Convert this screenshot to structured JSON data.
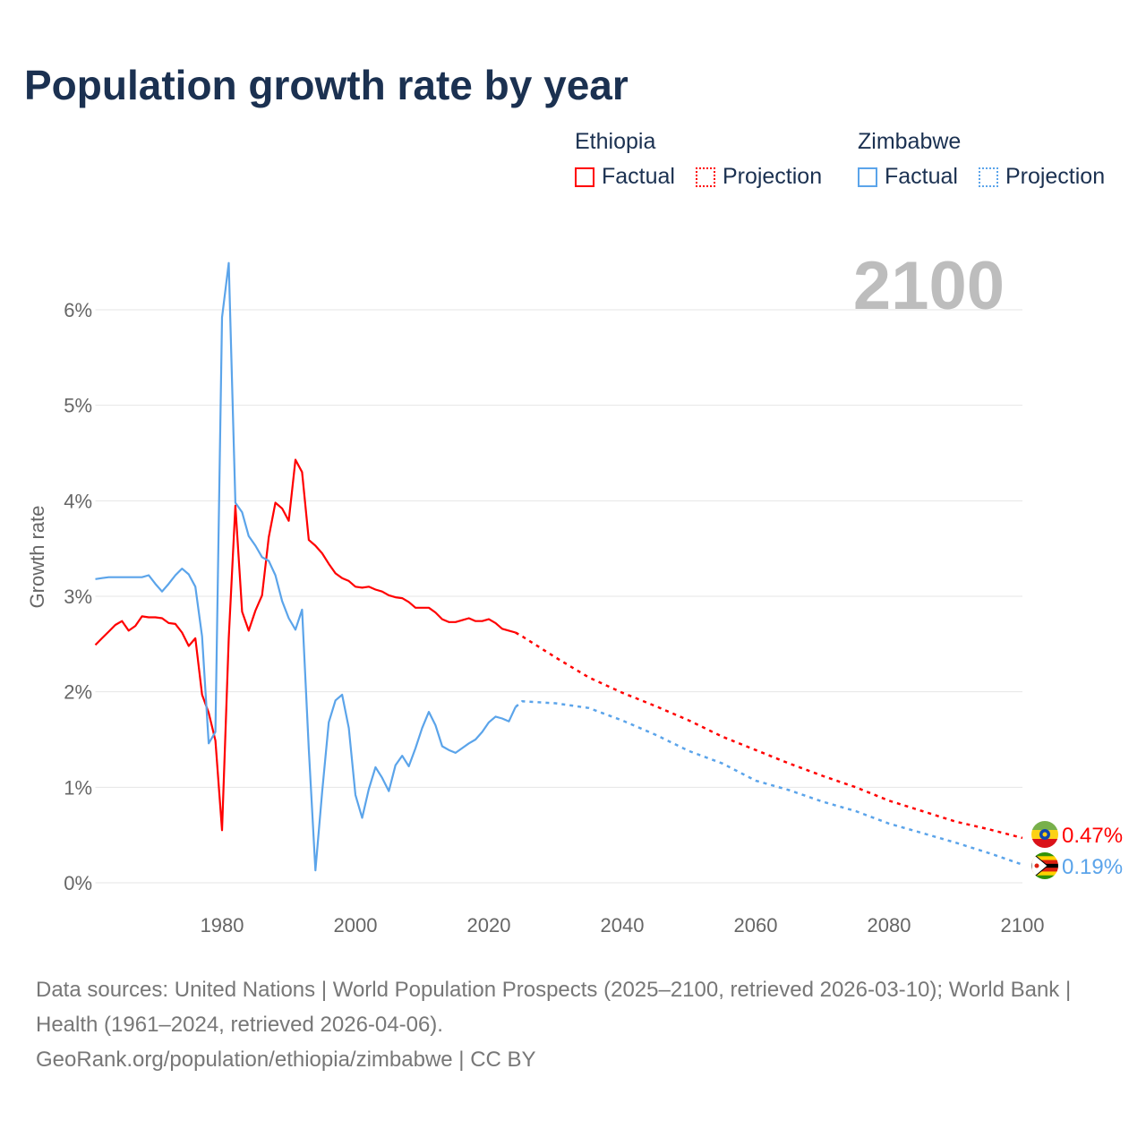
{
  "title": "Population growth rate by year",
  "legend": {
    "groups": [
      {
        "country": "Ethiopia",
        "factual": "Factual",
        "projection": "Projection",
        "color": "#ff0000"
      },
      {
        "country": "Zimbabwe",
        "factual": "Factual",
        "projection": "Projection",
        "color": "#5ba4ea"
      }
    ]
  },
  "year_watermark": "2100",
  "footer": {
    "sources": "Data sources: United Nations | World Population Prospects (2025–2100, retrieved 2026-03-10); World Bank | Health (1961–2024, retrieved 2026-04-06).",
    "credit": "GeoRank.org/population/ethiopia/zimbabwe | CC BY"
  },
  "chart_data": {
    "type": "line",
    "title": "Population growth rate by year",
    "xlabel": "",
    "ylabel": "Growth rate",
    "xlim": [
      1961,
      2100
    ],
    "ylim": [
      0,
      6.5
    ],
    "x_ticks": [
      1980,
      2000,
      2020,
      2040,
      2060,
      2080,
      2100
    ],
    "y_ticks": [
      0,
      1,
      2,
      3,
      4,
      5,
      6
    ],
    "y_tick_labels": [
      "0%",
      "1%",
      "2%",
      "3%",
      "4%",
      "5%",
      "6%"
    ],
    "grid": true,
    "legend_position": "top-right",
    "series": [
      {
        "name": "Ethiopia",
        "color": "#ff0000",
        "end_label": "0.47%",
        "factual": {
          "x": [
            1961,
            1962,
            1963,
            1964,
            1965,
            1966,
            1967,
            1968,
            1969,
            1970,
            1971,
            1972,
            1973,
            1974,
            1975,
            1976,
            1977,
            1978,
            1979,
            1980,
            1981,
            1982,
            1983,
            1984,
            1985,
            1986,
            1987,
            1988,
            1989,
            1990,
            1991,
            1992,
            1993,
            1994,
            1995,
            1996,
            1997,
            1998,
            1999,
            2000,
            2001,
            2002,
            2003,
            2004,
            2005,
            2006,
            2007,
            2008,
            2009,
            2010,
            2011,
            2012,
            2013,
            2014,
            2015,
            2016,
            2017,
            2018,
            2019,
            2020,
            2021,
            2022,
            2023,
            2024
          ],
          "y": [
            2.49,
            2.56,
            2.63,
            2.7,
            2.74,
            2.64,
            2.69,
            2.79,
            2.78,
            2.78,
            2.77,
            2.72,
            2.71,
            2.62,
            2.48,
            2.56,
            1.97,
            1.78,
            1.49,
            0.55,
            2.56,
            3.95,
            2.84,
            2.64,
            2.85,
            3.01,
            3.62,
            3.98,
            3.92,
            3.79,
            4.43,
            4.3,
            3.59,
            3.53,
            3.45,
            3.34,
            3.24,
            3.19,
            3.16,
            3.1,
            3.09,
            3.1,
            3.07,
            3.05,
            3.01,
            2.99,
            2.98,
            2.94,
            2.88,
            2.88,
            2.88,
            2.83,
            2.76,
            2.73,
            2.73,
            2.75,
            2.77,
            2.74,
            2.74,
            2.76,
            2.72,
            2.66,
            2.64,
            2.62
          ]
        },
        "projection": {
          "x": [
            2024,
            2025,
            2030,
            2035,
            2040,
            2045,
            2050,
            2055,
            2060,
            2065,
            2070,
            2075,
            2080,
            2085,
            2090,
            2095,
            2100
          ],
          "y": [
            2.62,
            2.58,
            2.36,
            2.15,
            1.99,
            1.85,
            1.7,
            1.53,
            1.39,
            1.25,
            1.12,
            1.0,
            0.86,
            0.75,
            0.64,
            0.56,
            0.47
          ]
        }
      },
      {
        "name": "Zimbabwe",
        "color": "#5ba4ea",
        "end_label": "0.19%",
        "factual": {
          "x": [
            1961,
            1962,
            1963,
            1964,
            1965,
            1966,
            1967,
            1968,
            1969,
            1970,
            1971,
            1972,
            1973,
            1974,
            1975,
            1976,
            1977,
            1978,
            1979,
            1980,
            1981,
            1982,
            1983,
            1984,
            1985,
            1986,
            1987,
            1988,
            1989,
            1990,
            1991,
            1992,
            1993,
            1994,
            1995,
            1996,
            1997,
            1998,
            1999,
            2000,
            2001,
            2002,
            2003,
            2004,
            2005,
            2006,
            2007,
            2008,
            2009,
            2010,
            2011,
            2012,
            2013,
            2014,
            2015,
            2016,
            2017,
            2018,
            2019,
            2020,
            2021,
            2022,
            2023,
            2024
          ],
          "y": [
            3.18,
            3.19,
            3.2,
            3.2,
            3.2,
            3.2,
            3.2,
            3.2,
            3.22,
            3.13,
            3.05,
            3.13,
            3.22,
            3.29,
            3.23,
            3.1,
            2.58,
            1.46,
            1.58,
            5.92,
            6.49,
            3.98,
            3.88,
            3.63,
            3.53,
            3.41,
            3.37,
            3.22,
            2.95,
            2.77,
            2.65,
            2.86,
            1.4,
            0.13,
            0.95,
            1.68,
            1.91,
            1.97,
            1.62,
            0.92,
            0.68,
            0.98,
            1.21,
            1.1,
            0.96,
            1.23,
            1.33,
            1.22,
            1.41,
            1.62,
            1.79,
            1.65,
            1.43,
            1.39,
            1.36,
            1.41,
            1.46,
            1.5,
            1.58,
            1.68,
            1.74,
            1.72,
            1.69,
            1.84
          ]
        },
        "projection": {
          "x": [
            2024,
            2025,
            2030,
            2035,
            2040,
            2045,
            2050,
            2055,
            2060,
            2065,
            2070,
            2075,
            2080,
            2085,
            2090,
            2095,
            2100
          ],
          "y": [
            1.84,
            1.9,
            1.88,
            1.83,
            1.7,
            1.55,
            1.38,
            1.25,
            1.07,
            0.97,
            0.85,
            0.75,
            0.62,
            0.52,
            0.42,
            0.31,
            0.19
          ]
        }
      }
    ]
  }
}
